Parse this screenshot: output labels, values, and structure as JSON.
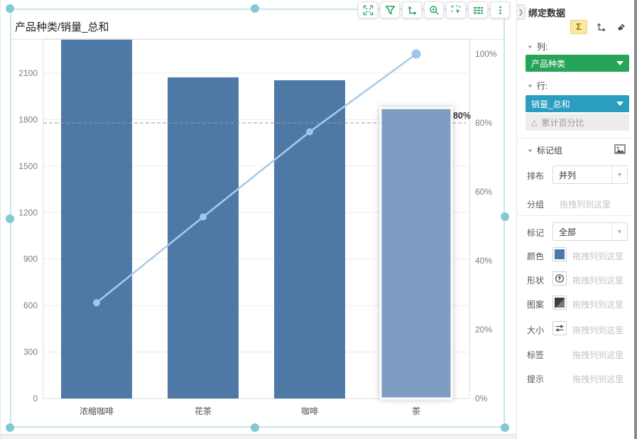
{
  "chart_data": {
    "type": "bar",
    "subtype": "pareto-bar-with-cumulative-line",
    "title": "产品种类/销量_总和",
    "categories": [
      "浓缩咖啡",
      "花茶",
      "咖啡",
      "茶"
    ],
    "series": [
      {
        "name": "销量_总和",
        "type": "bar",
        "axis": "left",
        "values": [
          2316,
          2073,
          2054,
          1875
        ]
      },
      {
        "name": "累计百分比",
        "type": "line",
        "axis": "right",
        "unit": "%",
        "values": [
          27.8,
          52.7,
          77.4,
          100
        ]
      }
    ],
    "left_axis": {
      "ticks": [
        0,
        300,
        600,
        900,
        1200,
        1500,
        1800,
        2100
      ],
      "visible_max": 2100,
      "plot_max_estimate": 2320
    },
    "right_axis": {
      "ticks_pct": [
        0,
        20,
        40,
        60,
        80,
        100
      ]
    },
    "alert_line": {
      "value_pct": 80,
      "label": "80%",
      "style": "dashed"
    },
    "highlighted_category": "茶",
    "legend": "none",
    "grid": "horizontal",
    "colors": {
      "bar": "#4e79a7",
      "bar_highlight": "#7e9dc3",
      "line": "#a8cbe9",
      "marker": "#9fc5e8",
      "alert": "#9a9a9a"
    }
  },
  "widget": {
    "title": "产品种类/销量_总和",
    "toolbar_icons": [
      "expand-icon",
      "filter-icon",
      "swap-axis-icon",
      "zoom-in-icon",
      "select-region-icon",
      "table-icon",
      "more-icon"
    ]
  },
  "sidebar": {
    "header": "绑定数据",
    "header_icons": [
      "sum-sigma-icon",
      "transpose-icon",
      "eraser-icon"
    ],
    "columns_section": {
      "label": "列:",
      "pill": "产品种类"
    },
    "rows_section": {
      "label": "行:",
      "pill": "销量_总和",
      "sub_item": "累计百分比"
    },
    "marks": {
      "header": "标记组",
      "header_icon": "image-icon",
      "arrange_label": "排布",
      "arrange_value": "并列",
      "group_label": "分组",
      "mark_label": "标记",
      "mark_value": "全部",
      "drop_placeholder": "拖拽列到这里",
      "channels": [
        {
          "label": "颜色",
          "icon": "color-swatch"
        },
        {
          "label": "形状",
          "icon": "shape-auto-icon"
        },
        {
          "label": "图案",
          "icon": "pattern-swatch"
        },
        {
          "label": "大小",
          "icon": "size-slider-icon"
        },
        {
          "label": "标签",
          "icon": ""
        },
        {
          "label": "提示",
          "icon": ""
        }
      ]
    },
    "colors": {
      "accent_green": "#26a558",
      "accent_teal": "#2b9dbf",
      "sigma_bg": "#f9e9a8",
      "selection": "#85c8d3",
      "tool_green": "#27a35f"
    }
  }
}
